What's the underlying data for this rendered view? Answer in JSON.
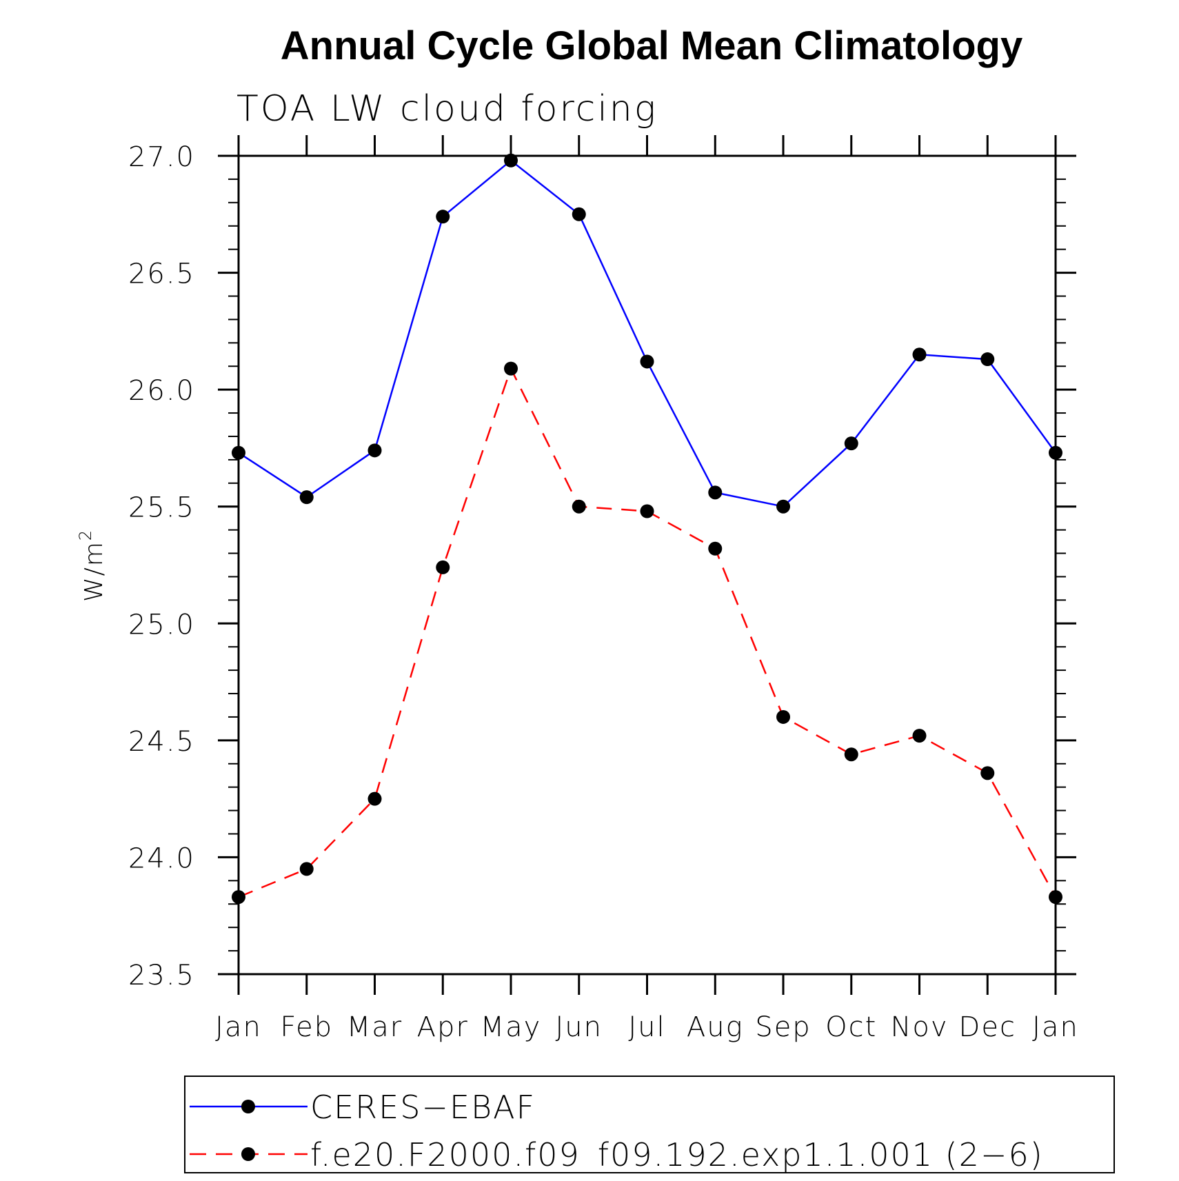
{
  "chart_data": {
    "type": "line",
    "title": "Annual Cycle Global Mean Climatology",
    "subtitle": "TOA LW cloud forcing",
    "ylabel": "W/m",
    "ylabel_sup": "2",
    "xlabel": "",
    "categories": [
      "Jan",
      "Feb",
      "Mar",
      "Apr",
      "May",
      "Jun",
      "Jul",
      "Aug",
      "Sep",
      "Oct",
      "Nov",
      "Dec",
      "Jan"
    ],
    "ylim": [
      23.5,
      27.0
    ],
    "yticks": [
      "23.5",
      "24.0",
      "24.5",
      "25.0",
      "25.5",
      "26.0",
      "26.5",
      "27.0"
    ],
    "grid": false,
    "legend_position": "bottom",
    "series": [
      {
        "name": "CERES−EBAF",
        "color": "#0000ff",
        "dash": "solid",
        "marker": "filled-circle",
        "values": [
          25.73,
          25.54,
          25.74,
          26.74,
          26.98,
          26.75,
          26.12,
          25.56,
          25.5,
          25.77,
          26.15,
          26.13,
          25.73
        ]
      },
      {
        "name": "f.e20.F2000.f09_f09.192.exp1.1.001 (2−6)",
        "color": "#ff0000",
        "dash": "dashed",
        "marker": "filled-circle",
        "values": [
          23.83,
          23.95,
          24.25,
          25.24,
          26.09,
          25.5,
          25.48,
          25.32,
          24.6,
          24.44,
          24.52,
          24.36,
          23.83
        ]
      }
    ]
  }
}
